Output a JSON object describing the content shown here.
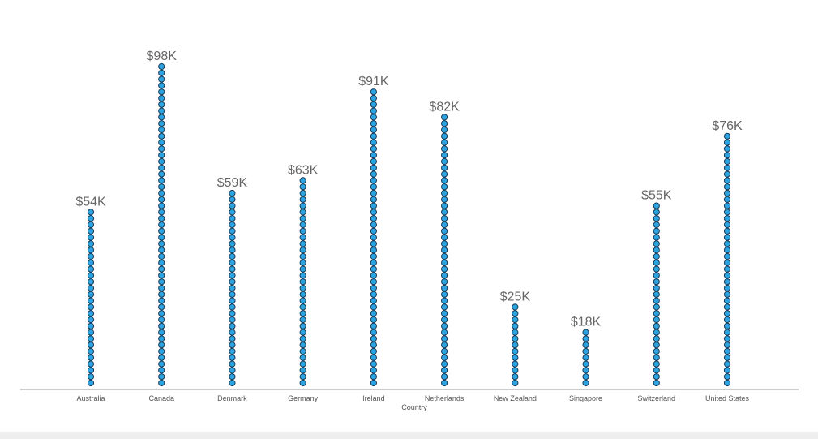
{
  "chart_data": {
    "type": "dot-column",
    "xlabel": "Country",
    "ylabel": "",
    "categories": [
      "Australia",
      "Canada",
      "Denmark",
      "Germany",
      "Ireland",
      "Netherlands",
      "New Zealand",
      "Singapore",
      "Switzerland",
      "United States"
    ],
    "values": [
      54,
      98,
      59,
      63,
      91,
      82,
      25,
      18,
      55,
      76
    ],
    "value_labels": [
      "$54K",
      "$98K",
      "$59K",
      "$63K",
      "$91K",
      "$82K",
      "$25K",
      "$18K",
      "$55K",
      "$76K"
    ],
    "ylim": [
      0,
      100
    ],
    "grid": false,
    "legend": "none",
    "colors": {
      "dot_fill": "#2aa3e0",
      "dot_stroke": "#1a3a55",
      "axis": "#999999"
    }
  }
}
